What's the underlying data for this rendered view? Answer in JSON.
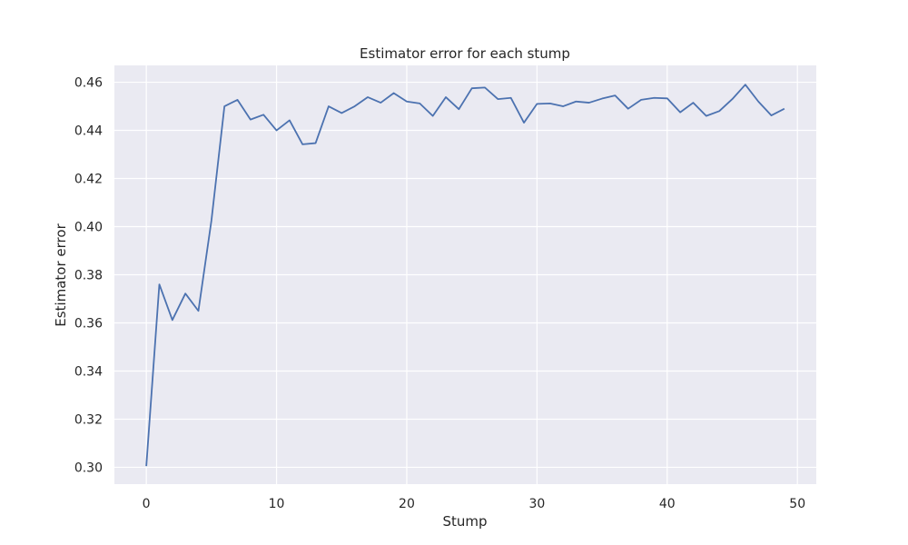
{
  "chart_data": {
    "type": "line",
    "title": "Estimator error for each stump",
    "xlabel": "Stump",
    "ylabel": "Estimator error",
    "xlim": [
      -2.45,
      51.45
    ],
    "ylim": [
      0.293,
      0.467
    ],
    "xticks": [
      0,
      10,
      20,
      30,
      40,
      50
    ],
    "yticks": [
      0.3,
      0.32,
      0.34,
      0.36,
      0.38,
      0.4,
      0.42,
      0.44,
      0.46
    ],
    "xtick_labels": [
      "0",
      "10",
      "20",
      "30",
      "40",
      "50"
    ],
    "ytick_labels": [
      "0.30",
      "0.32",
      "0.34",
      "0.36",
      "0.38",
      "0.40",
      "0.42",
      "0.44",
      "0.46"
    ],
    "grid": true,
    "style": "seaborn-darkgrid",
    "background_color": "#EAEAF2",
    "grid_color": "#FFFFFF",
    "series": [
      {
        "color": "#4C72B0",
        "x": [
          0,
          1,
          2,
          3,
          4,
          5,
          6,
          7,
          8,
          9,
          10,
          11,
          12,
          13,
          14,
          15,
          16,
          17,
          18,
          19,
          20,
          21,
          22,
          23,
          24,
          25,
          26,
          27,
          28,
          29,
          30,
          31,
          32,
          33,
          34,
          35,
          36,
          37,
          38,
          39,
          40,
          41,
          42,
          43,
          44,
          45,
          46,
          47,
          48,
          49
        ],
        "values": [
          0.3005,
          0.376,
          0.3612,
          0.3722,
          0.365,
          0.4025,
          0.45,
          0.4527,
          0.4445,
          0.4465,
          0.44,
          0.4442,
          0.4342,
          0.4347,
          0.45,
          0.4472,
          0.45,
          0.4538,
          0.4515,
          0.4555,
          0.452,
          0.4512,
          0.446,
          0.4538,
          0.4488,
          0.4575,
          0.4578,
          0.453,
          0.4535,
          0.4432,
          0.451,
          0.4512,
          0.45,
          0.452,
          0.4515,
          0.4532,
          0.4545,
          0.449,
          0.4527,
          0.4535,
          0.4533,
          0.4475,
          0.4515,
          0.446,
          0.448,
          0.453,
          0.459,
          0.452,
          0.4462,
          0.449
        ]
      }
    ]
  }
}
